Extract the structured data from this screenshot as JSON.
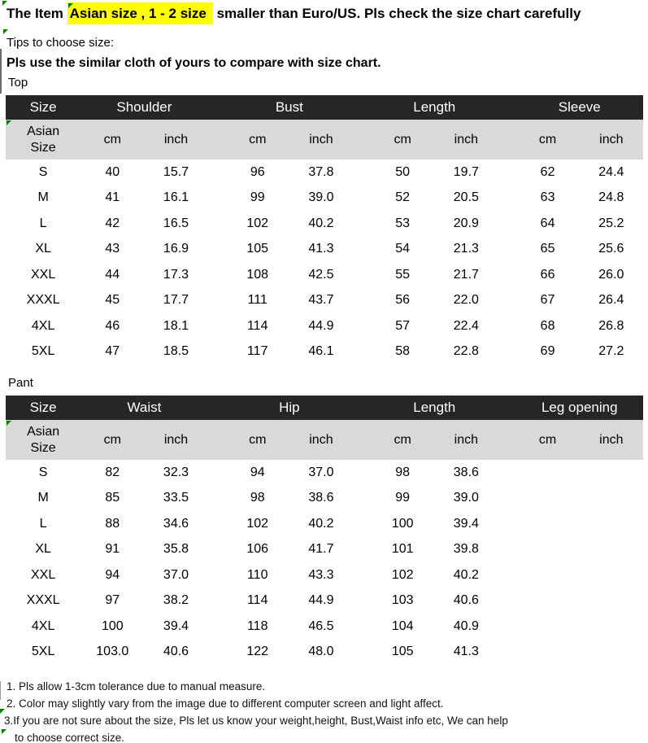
{
  "banner": {
    "prefix": "The Item",
    "highlight": "Asian size , 1 - 2 size",
    "suffix": "smaller than Euro/US. Pls check the size chart carefully",
    "highlight_color": "#ffff00"
  },
  "tips": {
    "heading": "Tips to choose size:",
    "instruction": "Pls use the similar cloth of yours to compare with size chart."
  },
  "top_table": {
    "section_label": "Top",
    "group_headers": [
      "Size",
      "Shoulder",
      "Bust",
      "Length",
      "Sleeve"
    ],
    "row_header": "Asian Size",
    "units": [
      "cm",
      "inch",
      "cm",
      "inch",
      "cm",
      "inch",
      "cm",
      "inch"
    ],
    "rows": [
      {
        "size": "S",
        "values": [
          "40",
          "15.7",
          "96",
          "37.8",
          "50",
          "19.7",
          "62",
          "24.4"
        ]
      },
      {
        "size": "M",
        "values": [
          "41",
          "16.1",
          "99",
          "39.0",
          "52",
          "20.5",
          "63",
          "24.8"
        ]
      },
      {
        "size": "L",
        "values": [
          "42",
          "16.5",
          "102",
          "40.2",
          "53",
          "20.9",
          "64",
          "25.2"
        ]
      },
      {
        "size": "XL",
        "values": [
          "43",
          "16.9",
          "105",
          "41.3",
          "54",
          "21.3",
          "65",
          "25.6"
        ]
      },
      {
        "size": "XXL",
        "values": [
          "44",
          "17.3",
          "108",
          "42.5",
          "55",
          "21.7",
          "66",
          "26.0"
        ]
      },
      {
        "size": "XXXL",
        "values": [
          "45",
          "17.7",
          "111",
          "43.7",
          "56",
          "22.0",
          "67",
          "26.4"
        ]
      },
      {
        "size": "4XL",
        "values": [
          "46",
          "18.1",
          "114",
          "44.9",
          "57",
          "22.4",
          "68",
          "26.8"
        ]
      },
      {
        "size": "5XL",
        "values": [
          "47",
          "18.5",
          "117",
          "46.1",
          "58",
          "22.8",
          "69",
          "27.2"
        ]
      }
    ]
  },
  "pant_table": {
    "section_label": "Pant",
    "group_headers": [
      "Size",
      "Waist",
      "Hip",
      "Length",
      "Leg opening"
    ],
    "row_header": "Asian Size",
    "units": [
      "cm",
      "inch",
      "cm",
      "inch",
      "cm",
      "inch",
      "cm",
      "inch"
    ],
    "rows": [
      {
        "size": "S",
        "values": [
          "82",
          "32.3",
          "94",
          "37.0",
          "98",
          "38.6",
          "",
          ""
        ]
      },
      {
        "size": "M",
        "values": [
          "85",
          "33.5",
          "98",
          "38.6",
          "99",
          "39.0",
          "",
          ""
        ]
      },
      {
        "size": "L",
        "values": [
          "88",
          "34.6",
          "102",
          "40.2",
          "100",
          "39.4",
          "",
          ""
        ]
      },
      {
        "size": "XL",
        "values": [
          "91",
          "35.8",
          "106",
          "41.7",
          "101",
          "39.8",
          "",
          ""
        ]
      },
      {
        "size": "XXL",
        "values": [
          "94",
          "37.0",
          "110",
          "43.3",
          "102",
          "40.2",
          "",
          ""
        ]
      },
      {
        "size": "XXXL",
        "values": [
          "97",
          "38.2",
          "114",
          "44.9",
          "103",
          "40.6",
          "",
          ""
        ]
      },
      {
        "size": "4XL",
        "values": [
          "100",
          "39.4",
          "118",
          "46.5",
          "104",
          "40.9",
          "",
          ""
        ]
      },
      {
        "size": "5XL",
        "values": [
          "103.0",
          "40.6",
          "122",
          "48.0",
          "105",
          "41.3",
          "",
          ""
        ]
      }
    ]
  },
  "notes": {
    "line1": "1. Pls allow 1-3cm tolerance due to manual measure.",
    "line2": "2. Color may slightly vary from the image due to different computer screen and light affect.",
    "line3": "3.If you are not sure about the size, Pls let us know your weight,height, Bust,Waist info etc, We can help",
    "line4": "to choose correct size."
  },
  "colors": {
    "table_header_bg": "#262626",
    "table_header_text": "#ffffff",
    "subheader_bg": "#d9d9d9",
    "highlight_yellow": "#ffff00",
    "marker_green": "#008000"
  },
  "icons": {
    "cell_marker": "green-corner-triangle"
  }
}
